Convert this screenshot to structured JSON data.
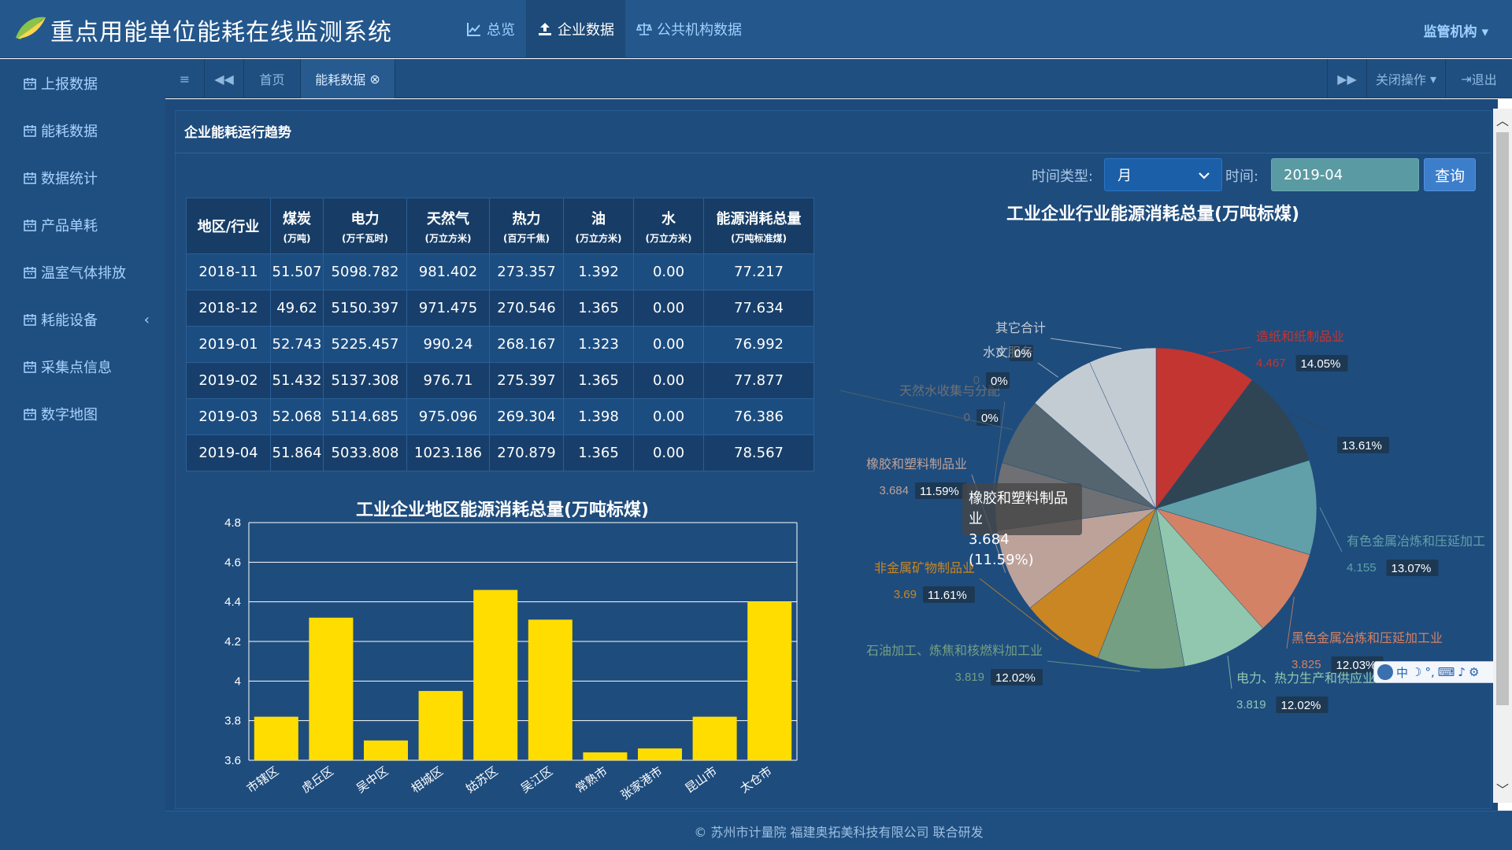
{
  "app": {
    "title": "重点用能单位能耗在线监测系统"
  },
  "topnav": [
    {
      "label": "总览",
      "icon": "line-chart-icon"
    },
    {
      "label": "企业数据",
      "icon": "upload-icon"
    },
    {
      "label": "公共机构数据",
      "icon": "balance-scale-icon"
    }
  ],
  "org_menu": "监管机构",
  "sidebar": {
    "items": [
      {
        "label": "上报数据"
      },
      {
        "label": "能耗数据"
      },
      {
        "label": "数据统计"
      },
      {
        "label": "产品单耗"
      },
      {
        "label": "温室气体排放"
      },
      {
        "label": "耗能设备"
      },
      {
        "label": "采集点信息"
      },
      {
        "label": "数字地图"
      }
    ]
  },
  "tabs": {
    "home": "首页",
    "active": "能耗数据",
    "close_ops": "关闭操作",
    "logout": "退出"
  },
  "section_title": "企业能耗运行趋势",
  "controls": {
    "time_type_label": "时间类型:",
    "time_type_value": "月",
    "time_label": "时间:",
    "time_value": "2019-04",
    "query_label": "查询"
  },
  "table": {
    "headers": [
      {
        "name": "地区/行业",
        "unit": ""
      },
      {
        "name": "煤炭",
        "unit": "(万吨)"
      },
      {
        "name": "电力",
        "unit": "(万千瓦时)"
      },
      {
        "name": "天然气",
        "unit": "(万立方米)"
      },
      {
        "name": "热力",
        "unit": "(百万千焦)"
      },
      {
        "name": "油",
        "unit": "(万立方米)"
      },
      {
        "name": "水",
        "unit": "(万立方米)"
      },
      {
        "name": "能源消耗总量",
        "unit": "(万吨标准煤)"
      }
    ],
    "rows": [
      [
        "2018-11",
        "51.507",
        "5098.782",
        "981.402",
        "273.357",
        "1.392",
        "0.00",
        "77.217"
      ],
      [
        "2018-12",
        "49.62",
        "5150.397",
        "971.475",
        "270.546",
        "1.365",
        "0.00",
        "77.634"
      ],
      [
        "2019-01",
        "52.743",
        "5225.457",
        "990.24",
        "268.167",
        "1.323",
        "0.00",
        "76.992"
      ],
      [
        "2019-02",
        "51.432",
        "5137.308",
        "976.71",
        "275.397",
        "1.365",
        "0.00",
        "77.877"
      ],
      [
        "2019-03",
        "52.068",
        "5114.685",
        "975.096",
        "269.304",
        "1.398",
        "0.00",
        "76.386"
      ],
      [
        "2019-04",
        "51.864",
        "5033.808",
        "1023.186",
        "270.879",
        "1.365",
        "0.00",
        "78.567"
      ]
    ]
  },
  "chart_data": [
    {
      "type": "bar",
      "title": "工业企业地区能源消耗总量(万吨标煤)",
      "categories": [
        "市辖区",
        "虎丘区",
        "吴中区",
        "相城区",
        "姑苏区",
        "吴江区",
        "常熟市",
        "张家港市",
        "昆山市",
        "太仓市"
      ],
      "values": [
        3.82,
        4.32,
        3.7,
        3.95,
        4.46,
        4.31,
        3.64,
        3.66,
        3.82,
        4.4
      ],
      "ylim": [
        3.6,
        4.8
      ],
      "yticks": [
        "3.6",
        "3.8",
        "4",
        "4.2",
        "4.4",
        "4.6",
        "4.8"
      ],
      "color": "#ffdd00",
      "grid": true
    },
    {
      "type": "pie",
      "title": "工业企业行业能源消耗总量(万吨标煤)",
      "slices": [
        {
          "name": "造纸和纸制品业",
          "value": 4.467,
          "value_label": "4.467",
          "pct": "14.05%",
          "color": "#c23531"
        },
        {
          "name": "",
          "value": 4.33,
          "value_label": "",
          "pct": "13.61%",
          "color": "#2f4554"
        },
        {
          "name": "有色金属冶炼和压延加工",
          "value": 4.155,
          "value_label": "4.155",
          "pct": "13.07%",
          "color": "#61a0a8"
        },
        {
          "name": "黑色金属冶炼和压延加工业",
          "value": 3.825,
          "value_label": "3.825",
          "pct": "12.03%",
          "color": "#d48265"
        },
        {
          "name": "电力、热力生产和供应业",
          "value": 3.819,
          "value_label": "3.819",
          "pct": "12.02%",
          "color": "#91c7ae"
        },
        {
          "name": "石油加工、炼焦和核燃料加工业",
          "value": 3.819,
          "value_label": "3.819",
          "pct": "12.02%",
          "color": "#749f83"
        },
        {
          "name": "非金属矿物制品业",
          "value": 3.69,
          "value_label": "3.69",
          "pct": "11.61%",
          "color": "#ca8622"
        },
        {
          "name": "橡胶和塑料制品业",
          "value": 3.684,
          "value_label": "3.684",
          "pct": "11.59%",
          "color": "#bda29a"
        },
        {
          "name": "天然水收集与分配",
          "value": 0,
          "value_label": "0",
          "pct": "0%",
          "color": "#6e7074"
        },
        {
          "name": "",
          "value": 0,
          "value_label": "0",
          "pct": "0%",
          "color": "#546570"
        },
        {
          "name": "水文服务",
          "value": 0,
          "value_label": "0",
          "pct": "0%",
          "color": "#c4ccd3"
        },
        {
          "name": "其它合计",
          "value": 0,
          "value_label": "",
          "pct": "",
          "color": "#c4ccd3"
        }
      ],
      "tooltip": {
        "line1": "橡胶和塑料制品业",
        "line2": "3.684 (11.59%)"
      }
    }
  ],
  "footer": "© 苏州市计量院 福建奥拓美科技有限公司 联合研发"
}
